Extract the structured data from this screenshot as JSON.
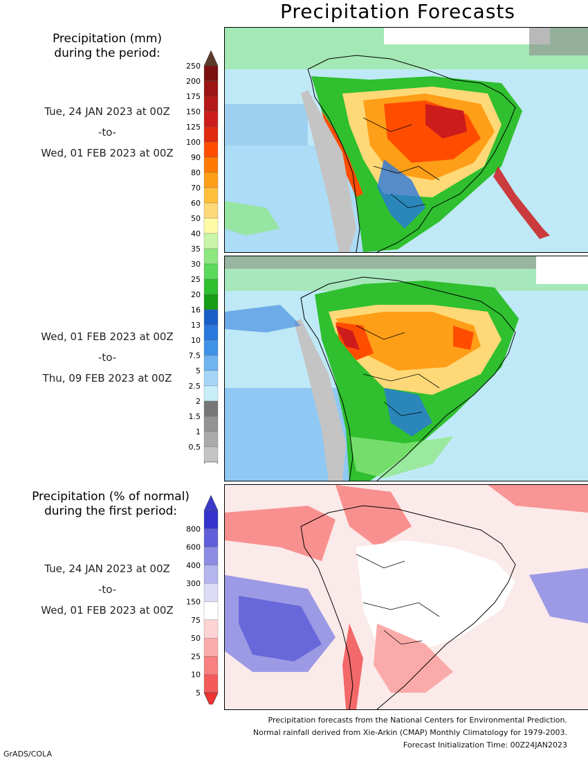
{
  "title": "Precipitation Forecasts",
  "legend_mm": {
    "title_line1": "Precipitation (mm)",
    "title_line2": "during the period:",
    "labels": [
      "250",
      "200",
      "175",
      "150",
      "125",
      "100",
      "90",
      "80",
      "70",
      "60",
      "50",
      "40",
      "35",
      "30",
      "25",
      "20",
      "16",
      "13",
      "10",
      "7.5",
      "5",
      "2.5",
      "2",
      "1.5",
      "1",
      "0.5"
    ],
    "colors": [
      "#7a1010",
      "#9c1414",
      "#b41818",
      "#cc1c1c",
      "#e02a10",
      "#ff4d00",
      "#ff7b00",
      "#ff9e17",
      "#ffbf3b",
      "#ffd977",
      "#fffaa6",
      "#c8f5a8",
      "#8ee880",
      "#5ad95a",
      "#2fbf2f",
      "#159d15",
      "#1a5fc8",
      "#2a78dd",
      "#3f92e8",
      "#6fb3f1",
      "#a5d6f7",
      "#c8eef9",
      "#777777",
      "#949494",
      "#aaaaaa",
      "#c4c4c4"
    ],
    "top_arrow_color": "#5a3a2a"
  },
  "legend_pct": {
    "title_line1": "Precipitation (% of normal)",
    "title_line2": "during the first period:",
    "labels": [
      "800",
      "600",
      "400",
      "300",
      "150",
      "75",
      "50",
      "25",
      "10",
      "5"
    ],
    "colors": [
      "#3434cc",
      "#5f5fd9",
      "#8c8ce4",
      "#b4b4ee",
      "#dcdcf7",
      "#ffffff",
      "#fdd3d3",
      "#fbaaaa",
      "#f88080",
      "#f25a5a"
    ],
    "top_arrow_color": "#3a3ac8",
    "bottom_arrow_color": "#ef3333"
  },
  "periods": [
    {
      "start": "Tue, 24 JAN 2023 at 00Z",
      "sep": "-to-",
      "end": "Wed, 01 FEB 2023 at 00Z"
    },
    {
      "start": "Wed, 01 FEB 2023 at 00Z",
      "sep": "-to-",
      "end": "Thu, 09 FEB 2023 at 00Z"
    },
    {
      "start": "Tue, 24 JAN 2023 at 00Z",
      "sep": "-to-",
      "end": "Wed, 01 FEB 2023 at 00Z"
    }
  ],
  "footer": {
    "line1": "Precipitation forecasts from the National Centers for Environmental Prediction.",
    "line2": "Normal rainfall derived from Xie-Arkin (CMAP) Monthly Climatology for 1979-2003.",
    "line3": "Forecast Initialization Time: 00Z24JAN2023"
  },
  "credit": "GrADS/COLA"
}
